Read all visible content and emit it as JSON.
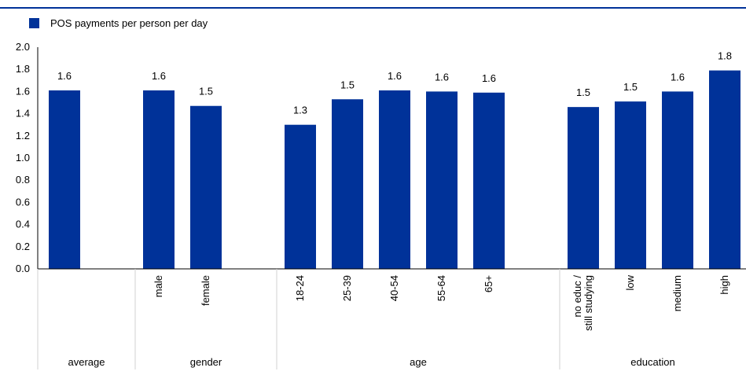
{
  "chart_data": {
    "type": "bar",
    "legend": {
      "label": "POS payments per person per day",
      "position": "top-left"
    },
    "series": [
      {
        "name": "POS payments per person per day",
        "color": "#003299",
        "values": [
          1.61,
          1.61,
          1.47,
          1.3,
          1.53,
          1.61,
          1.6,
          1.59,
          1.46,
          1.51,
          1.6,
          1.79
        ],
        "value_labels": [
          "1.6",
          "1.6",
          "1.5",
          "1.3",
          "1.5",
          "1.6",
          "1.6",
          "1.6",
          "1.5",
          "1.5",
          "1.6",
          "1.8"
        ]
      }
    ],
    "categories": [
      "",
      "male",
      "female",
      "18-24",
      "25-39",
      "40-54",
      "55-64",
      "65+",
      "no educ / still studying",
      "low",
      "medium",
      "high"
    ],
    "groups": [
      {
        "label": "average",
        "start": 0,
        "end": 0
      },
      {
        "label": "gender",
        "start": 1,
        "end": 2
      },
      {
        "label": "age",
        "start": 3,
        "end": 7
      },
      {
        "label": "education",
        "start": 8,
        "end": 11
      }
    ],
    "y_ticks": [
      "0.0",
      "0.2",
      "0.4",
      "0.6",
      "0.8",
      "1.0",
      "1.2",
      "1.4",
      "1.6",
      "1.8",
      "2.0"
    ],
    "ylim": [
      0,
      2.0
    ],
    "grid": false,
    "title": "",
    "xlabel": "",
    "ylabel": ""
  }
}
